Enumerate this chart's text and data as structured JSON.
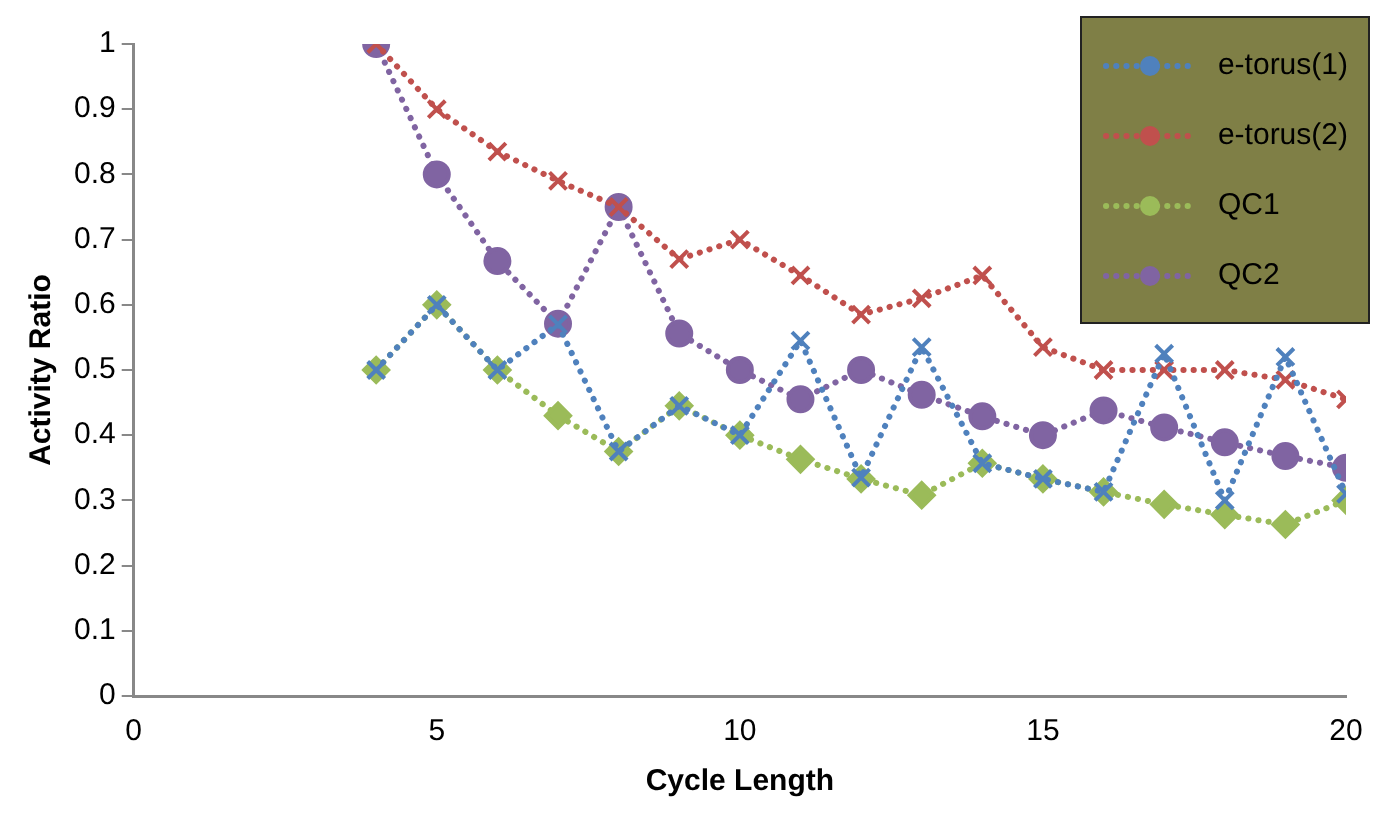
{
  "chart_data": {
    "type": "line",
    "xlabel": "Cycle Length",
    "ylabel": "Activity Ratio",
    "x": [
      4,
      5,
      6,
      7,
      8,
      9,
      10,
      11,
      12,
      13,
      14,
      15,
      16,
      17,
      18,
      19,
      20
    ],
    "xlim": [
      0,
      20
    ],
    "xticks": [
      0,
      5,
      10,
      15,
      20
    ],
    "ylim": [
      0,
      1
    ],
    "yticks": [
      0,
      0.1,
      0.2,
      0.3,
      0.4,
      0.5,
      0.6,
      0.7,
      0.8,
      0.9,
      1
    ],
    "grid": false,
    "legend": "top right",
    "line_style": "dotted",
    "series": [
      {
        "name": "e-torus(1)",
        "color": "#4f81bd",
        "marker": "cross",
        "values": [
          0.5,
          0.6,
          0.5,
          0.57,
          0.375,
          0.445,
          0.4,
          0.545,
          0.335,
          0.535,
          0.357,
          0.333,
          0.313,
          0.525,
          0.3,
          0.52,
          0.31
        ]
      },
      {
        "name": "e-torus(2)",
        "color": "#c0504d",
        "marker": "cross",
        "values": [
          1,
          0.9,
          0.835,
          0.79,
          0.75,
          0.67,
          0.7,
          0.645,
          0.585,
          0.61,
          0.645,
          0.535,
          0.5,
          0.5,
          0.5,
          0.485,
          0.455
        ]
      },
      {
        "name": "QC1",
        "color": "#9bbb59",
        "marker": "diamond",
        "values": [
          0.5,
          0.6,
          0.5,
          0.43,
          0.375,
          0.445,
          0.4,
          0.363,
          0.333,
          0.308,
          0.357,
          0.333,
          0.313,
          0.294,
          0.278,
          0.263,
          0.3
        ]
      },
      {
        "name": "QC2",
        "color": "#8064a2",
        "marker": "circle",
        "values": [
          1,
          0.8,
          0.667,
          0.571,
          0.75,
          0.556,
          0.5,
          0.455,
          0.5,
          0.462,
          0.429,
          0.4,
          0.438,
          0.412,
          0.389,
          0.368,
          0.35
        ]
      }
    ]
  }
}
